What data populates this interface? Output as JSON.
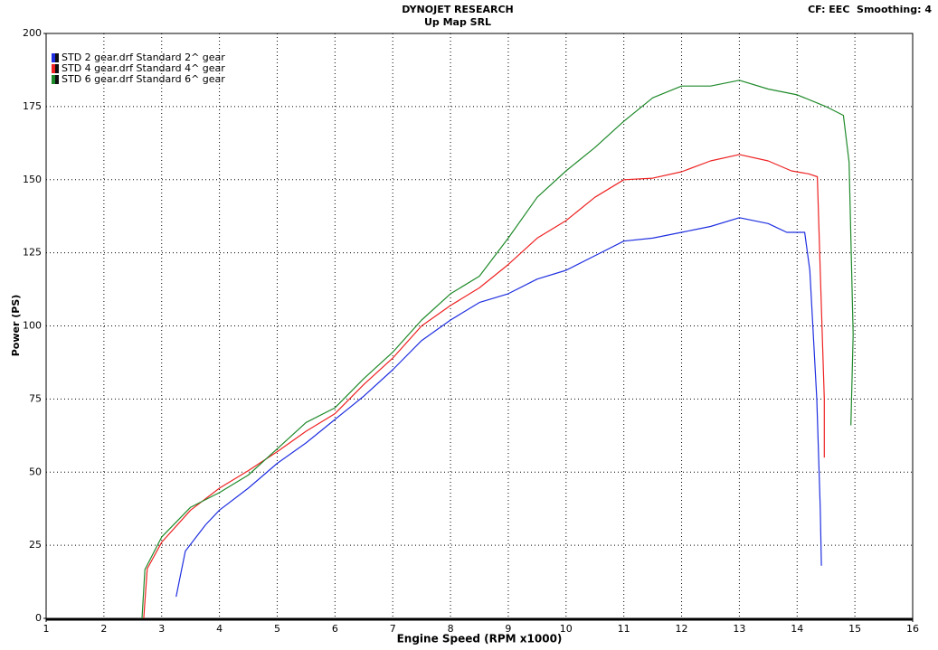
{
  "chart_data": {
    "type": "line",
    "title": "DYNOJET RESEARCH",
    "subtitle": "Up Map SRL",
    "header_right": "CF: EEC  Smoothing: 4",
    "x_label": "Engine Speed (RPM x1000)",
    "y_label": "Power (PS)",
    "xlim": [
      1,
      16
    ],
    "ylim": [
      0,
      200
    ],
    "xticks": [
      1,
      2,
      3,
      4,
      5,
      6,
      7,
      8,
      9,
      10,
      11,
      12,
      13,
      14,
      15,
      16
    ],
    "yticks": [
      0,
      25,
      50,
      75,
      100,
      125,
      150,
      175,
      200
    ],
    "grid": true,
    "legend": "top-left",
    "series": [
      {
        "name": "STD 2 gear.drf Standard 2^ gear",
        "color": "#1f2fe0",
        "x": [
          3.25,
          3.41,
          3.76,
          4,
          4.5,
          5,
          5.5,
          6,
          6.5,
          7,
          7.5,
          8,
          8.5,
          9,
          9.5,
          10,
          10.5,
          11,
          11.5,
          12,
          12.5,
          13,
          13.5,
          13.82,
          14.13,
          14.22,
          14.34,
          14.4,
          14.42
        ],
        "values": [
          7.4,
          23,
          32,
          37,
          44.5,
          53,
          60,
          68,
          76,
          85,
          95,
          102,
          108,
          111,
          116,
          119,
          124,
          129,
          130,
          132,
          134,
          137,
          135,
          132,
          132,
          119,
          75,
          38,
          18
        ]
      },
      {
        "name": "STD 4 gear.drf Standard 4^ gear",
        "color": "#ee2222",
        "x": [
          2.69,
          2.75,
          3,
          3.5,
          4,
          4.5,
          5,
          5.5,
          6,
          6.5,
          7,
          7.5,
          8,
          8.5,
          9,
          9.5,
          10,
          10.5,
          11,
          11.5,
          12,
          12.5,
          13,
          13.5,
          13.9,
          14.2,
          14.35,
          14.4,
          14.47,
          14.47
        ],
        "values": [
          0,
          17,
          26,
          37,
          44.5,
          50.5,
          57,
          64,
          70,
          80,
          89,
          100,
          107,
          113,
          121,
          130,
          136,
          144,
          150,
          150.5,
          152.7,
          156.4,
          158.6,
          156.4,
          153,
          152,
          151,
          119,
          75,
          55
        ]
      },
      {
        "name": "STD 6 gear.drf Standard 6^ gear",
        "color": "#1f8a2a",
        "x": [
          2.66,
          2.71,
          3,
          3.5,
          4,
          4.5,
          5,
          5.5,
          6,
          6.5,
          7,
          7.5,
          8,
          8.5,
          9,
          9.5,
          10,
          10.5,
          11,
          11.5,
          12,
          12.5,
          13,
          13.5,
          14,
          14.5,
          14.8,
          14.9,
          14.97,
          14.93
        ],
        "values": [
          0,
          16.7,
          27.8,
          38,
          43,
          49,
          58,
          67,
          72,
          82,
          91,
          102,
          111,
          117,
          130,
          144,
          153,
          161,
          170,
          178,
          182,
          182,
          184,
          181,
          179,
          175,
          172,
          156,
          97,
          66
        ]
      }
    ]
  }
}
